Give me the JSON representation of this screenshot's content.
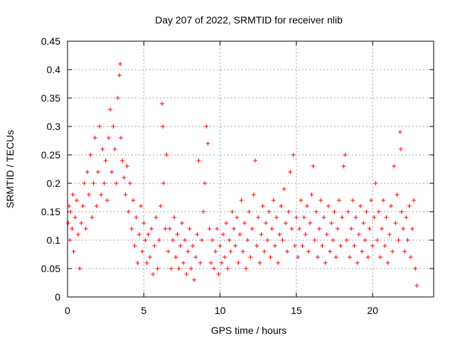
{
  "chart_data": {
    "type": "scatter",
    "title": "Day 207 of 2022, SRMTID for receiver nlib",
    "xlabel": "GPS time / hours",
    "ylabel": "SRMTID / TECUs",
    "xlim": [
      0,
      24
    ],
    "ylim": [
      0,
      0.45
    ],
    "xticks": [
      0,
      5,
      10,
      15,
      20
    ],
    "yticks": [
      0,
      0.05,
      0.1,
      0.15,
      0.2,
      0.25,
      0.3,
      0.35,
      0.4,
      0.45
    ],
    "grid": true,
    "marker": "plus",
    "series_color": "#ff0000",
    "points": [
      [
        0.05,
        0.13
      ],
      [
        0.1,
        0.16
      ],
      [
        0.15,
        0.1
      ],
      [
        0.2,
        0.15
      ],
      [
        0.3,
        0.12
      ],
      [
        0.35,
        0.18
      ],
      [
        0.4,
        0.08
      ],
      [
        0.5,
        0.14
      ],
      [
        0.6,
        0.17
      ],
      [
        0.7,
        0.11
      ],
      [
        0.8,
        0.05
      ],
      [
        0.9,
        0.13
      ],
      [
        1.0,
        0.16
      ],
      [
        1.1,
        0.2
      ],
      [
        1.2,
        0.12
      ],
      [
        1.3,
        0.22
      ],
      [
        1.4,
        0.18
      ],
      [
        1.5,
        0.25
      ],
      [
        1.6,
        0.14
      ],
      [
        1.7,
        0.2
      ],
      [
        1.8,
        0.28
      ],
      [
        1.9,
        0.16
      ],
      [
        2.0,
        0.22
      ],
      [
        2.1,
        0.3
      ],
      [
        2.2,
        0.18
      ],
      [
        2.3,
        0.26
      ],
      [
        2.4,
        0.2
      ],
      [
        2.5,
        0.24
      ],
      [
        2.6,
        0.17
      ],
      [
        2.7,
        0.28
      ],
      [
        2.8,
        0.33
      ],
      [
        2.9,
        0.22
      ],
      [
        3.0,
        0.3
      ],
      [
        3.1,
        0.26
      ],
      [
        3.2,
        0.2
      ],
      [
        3.3,
        0.35
      ],
      [
        3.4,
        0.39
      ],
      [
        3.45,
        0.41
      ],
      [
        3.5,
        0.28
      ],
      [
        3.6,
        0.24
      ],
      [
        3.7,
        0.21
      ],
      [
        3.8,
        0.18
      ],
      [
        3.9,
        0.23
      ],
      [
        4.0,
        0.15
      ],
      [
        4.1,
        0.2
      ],
      [
        4.2,
        0.12
      ],
      [
        4.3,
        0.17
      ],
      [
        4.4,
        0.09
      ],
      [
        4.5,
        0.14
      ],
      [
        4.6,
        0.06
      ],
      [
        4.7,
        0.11
      ],
      [
        4.8,
        0.16
      ],
      [
        4.9,
        0.08
      ],
      [
        5.0,
        0.13
      ],
      [
        5.1,
        0.1
      ],
      [
        5.2,
        0.06
      ],
      [
        5.3,
        0.11
      ],
      [
        5.4,
        0.07
      ],
      [
        5.5,
        0.12
      ],
      [
        5.6,
        0.04
      ],
      [
        5.7,
        0.09
      ],
      [
        5.8,
        0.14
      ],
      [
        5.9,
        0.05
      ],
      [
        6.0,
        0.1
      ],
      [
        6.1,
        0.16
      ],
      [
        6.2,
        0.34
      ],
      [
        6.25,
        0.3
      ],
      [
        6.3,
        0.2
      ],
      [
        6.4,
        0.12
      ],
      [
        6.5,
        0.25
      ],
      [
        6.6,
        0.08
      ],
      [
        6.7,
        0.12
      ],
      [
        6.8,
        0.05
      ],
      [
        6.9,
        0.1
      ],
      [
        7.0,
        0.14
      ],
      [
        7.1,
        0.07
      ],
      [
        7.2,
        0.11
      ],
      [
        7.3,
        0.05
      ],
      [
        7.4,
        0.09
      ],
      [
        7.5,
        0.13
      ],
      [
        7.6,
        0.06
      ],
      [
        7.7,
        0.1
      ],
      [
        7.8,
        0.04
      ],
      [
        7.9,
        0.08
      ],
      [
        8.0,
        0.12
      ],
      [
        8.1,
        0.05
      ],
      [
        8.2,
        0.09
      ],
      [
        8.3,
        0.03
      ],
      [
        8.4,
        0.07
      ],
      [
        8.5,
        0.11
      ],
      [
        8.6,
        0.24
      ],
      [
        8.7,
        0.06
      ],
      [
        8.8,
        0.1
      ],
      [
        8.9,
        0.15
      ],
      [
        9.0,
        0.2
      ],
      [
        9.1,
        0.3
      ],
      [
        9.2,
        0.27
      ],
      [
        9.3,
        0.12
      ],
      [
        9.4,
        0.06
      ],
      [
        9.5,
        0.1
      ],
      [
        9.6,
        0.05
      ],
      [
        9.7,
        0.08
      ],
      [
        9.8,
        0.12
      ],
      [
        9.9,
        0.04
      ],
      [
        10.0,
        0.09
      ],
      [
        10.1,
        0.06
      ],
      [
        10.2,
        0.11
      ],
      [
        10.3,
        0.07
      ],
      [
        10.4,
        0.13
      ],
      [
        10.5,
        0.05
      ],
      [
        10.6,
        0.1
      ],
      [
        10.7,
        0.08
      ],
      [
        10.8,
        0.15
      ],
      [
        10.9,
        0.12
      ],
      [
        11.0,
        0.09
      ],
      [
        11.1,
        0.14
      ],
      [
        11.2,
        0.06
      ],
      [
        11.3,
        0.11
      ],
      [
        11.4,
        0.17
      ],
      [
        11.5,
        0.08
      ],
      [
        11.6,
        0.13
      ],
      [
        11.7,
        0.05
      ],
      [
        11.8,
        0.1
      ],
      [
        11.9,
        0.15
      ],
      [
        12.0,
        0.07
      ],
      [
        12.1,
        0.12
      ],
      [
        12.2,
        0.18
      ],
      [
        12.3,
        0.24
      ],
      [
        12.4,
        0.09
      ],
      [
        12.5,
        0.14
      ],
      [
        12.6,
        0.06
      ],
      [
        12.7,
        0.11
      ],
      [
        12.8,
        0.16
      ],
      [
        12.9,
        0.08
      ],
      [
        13.0,
        0.13
      ],
      [
        13.1,
        0.1
      ],
      [
        13.2,
        0.15
      ],
      [
        13.3,
        0.07
      ],
      [
        13.4,
        0.12
      ],
      [
        13.5,
        0.17
      ],
      [
        13.6,
        0.09
      ],
      [
        13.7,
        0.14
      ],
      [
        13.8,
        0.06
      ],
      [
        13.9,
        0.11
      ],
      [
        14.0,
        0.16
      ],
      [
        14.1,
        0.1
      ],
      [
        14.2,
        0.19
      ],
      [
        14.3,
        0.13
      ],
      [
        14.4,
        0.08
      ],
      [
        14.5,
        0.15
      ],
      [
        14.6,
        0.22
      ],
      [
        14.7,
        0.12
      ],
      [
        14.8,
        0.25
      ],
      [
        14.9,
        0.09
      ],
      [
        15.0,
        0.14
      ],
      [
        15.1,
        0.07
      ],
      [
        15.2,
        0.12
      ],
      [
        15.3,
        0.17
      ],
      [
        15.4,
        0.09
      ],
      [
        15.5,
        0.14
      ],
      [
        15.6,
        0.11
      ],
      [
        15.7,
        0.16
      ],
      [
        15.8,
        0.08
      ],
      [
        15.9,
        0.13
      ],
      [
        16.0,
        0.18
      ],
      [
        16.1,
        0.23
      ],
      [
        16.2,
        0.1
      ],
      [
        16.3,
        0.15
      ],
      [
        16.4,
        0.07
      ],
      [
        16.5,
        0.12
      ],
      [
        16.6,
        0.17
      ],
      [
        16.7,
        0.09
      ],
      [
        16.8,
        0.14
      ],
      [
        16.9,
        0.06
      ],
      [
        17.0,
        0.11
      ],
      [
        17.1,
        0.16
      ],
      [
        17.2,
        0.08
      ],
      [
        17.3,
        0.13
      ],
      [
        17.4,
        0.1
      ],
      [
        17.5,
        0.15
      ],
      [
        17.6,
        0.07
      ],
      [
        17.7,
        0.12
      ],
      [
        17.8,
        0.17
      ],
      [
        17.9,
        0.09
      ],
      [
        18.0,
        0.14
      ],
      [
        18.1,
        0.23
      ],
      [
        18.2,
        0.25
      ],
      [
        18.3,
        0.1
      ],
      [
        18.4,
        0.15
      ],
      [
        18.5,
        0.07
      ],
      [
        18.6,
        0.12
      ],
      [
        18.7,
        0.17
      ],
      [
        18.8,
        0.09
      ],
      [
        18.9,
        0.14
      ],
      [
        19.0,
        0.06
      ],
      [
        19.1,
        0.11
      ],
      [
        19.2,
        0.16
      ],
      [
        19.3,
        0.08
      ],
      [
        19.4,
        0.13
      ],
      [
        19.5,
        0.1
      ],
      [
        19.6,
        0.15
      ],
      [
        19.7,
        0.07
      ],
      [
        19.8,
        0.12
      ],
      [
        19.9,
        0.17
      ],
      [
        20.0,
        0.09
      ],
      [
        20.1,
        0.14
      ],
      [
        20.2,
        0.2
      ],
      [
        20.3,
        0.1
      ],
      [
        20.4,
        0.15
      ],
      [
        20.5,
        0.07
      ],
      [
        20.6,
        0.12
      ],
      [
        20.7,
        0.17
      ],
      [
        20.8,
        0.09
      ],
      [
        20.9,
        0.14
      ],
      [
        21.0,
        0.06
      ],
      [
        21.1,
        0.11
      ],
      [
        21.2,
        0.16
      ],
      [
        21.3,
        0.08
      ],
      [
        21.4,
        0.23
      ],
      [
        21.5,
        0.13
      ],
      [
        21.6,
        0.18
      ],
      [
        21.7,
        0.1
      ],
      [
        21.8,
        0.29
      ],
      [
        21.85,
        0.26
      ],
      [
        21.9,
        0.15
      ],
      [
        22.0,
        0.12
      ],
      [
        22.1,
        0.08
      ],
      [
        22.2,
        0.14
      ],
      [
        22.3,
        0.1
      ],
      [
        22.4,
        0.16
      ],
      [
        22.5,
        0.07
      ],
      [
        22.6,
        0.12
      ],
      [
        22.7,
        0.17
      ],
      [
        22.8,
        0.05
      ],
      [
        22.9,
        0.02
      ]
    ]
  }
}
